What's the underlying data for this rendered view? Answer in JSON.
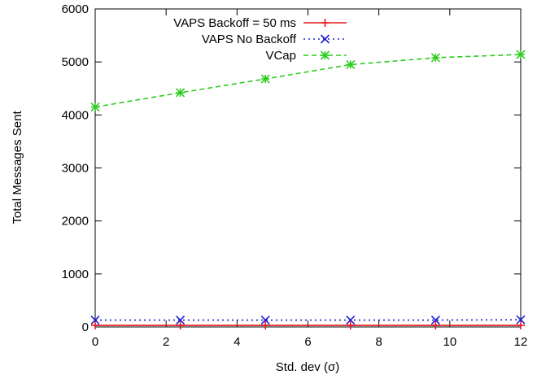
{
  "chart_data": {
    "type": "line",
    "xlabel": "Std. dev (σ)",
    "ylabel": "Total Messages Sent",
    "xlim": [
      0,
      12
    ],
    "ylim": [
      0,
      6000
    ],
    "xticks": [
      0,
      2,
      4,
      6,
      8,
      10,
      12
    ],
    "yticks": [
      0,
      1000,
      2000,
      3000,
      4000,
      5000,
      6000
    ],
    "grid": false,
    "legend_position": "top-left",
    "series": [
      {
        "name": "VAPS Backoff = 50 ms",
        "color": "#e41a1c",
        "dash": "solid",
        "marker": "plus",
        "x": [
          0,
          2.4,
          4.8,
          7.2,
          9.6,
          12
        ],
        "y": [
          30,
          30,
          30,
          30,
          30,
          30
        ]
      },
      {
        "name": "VAPS No Backoff",
        "color": "#1f1fd6",
        "dash": "dotted",
        "marker": "cross",
        "x": [
          0,
          2.4,
          4.8,
          7.2,
          9.6,
          12
        ],
        "y": [
          130,
          130,
          130,
          130,
          130,
          135
        ]
      },
      {
        "name": "VCap",
        "color": "#2ecc1f",
        "dash": "dashed",
        "marker": "star",
        "x": [
          0,
          2.4,
          4.8,
          7.2,
          9.6,
          12
        ],
        "y": [
          4150,
          4420,
          4680,
          4950,
          5080,
          5140
        ]
      }
    ]
  }
}
